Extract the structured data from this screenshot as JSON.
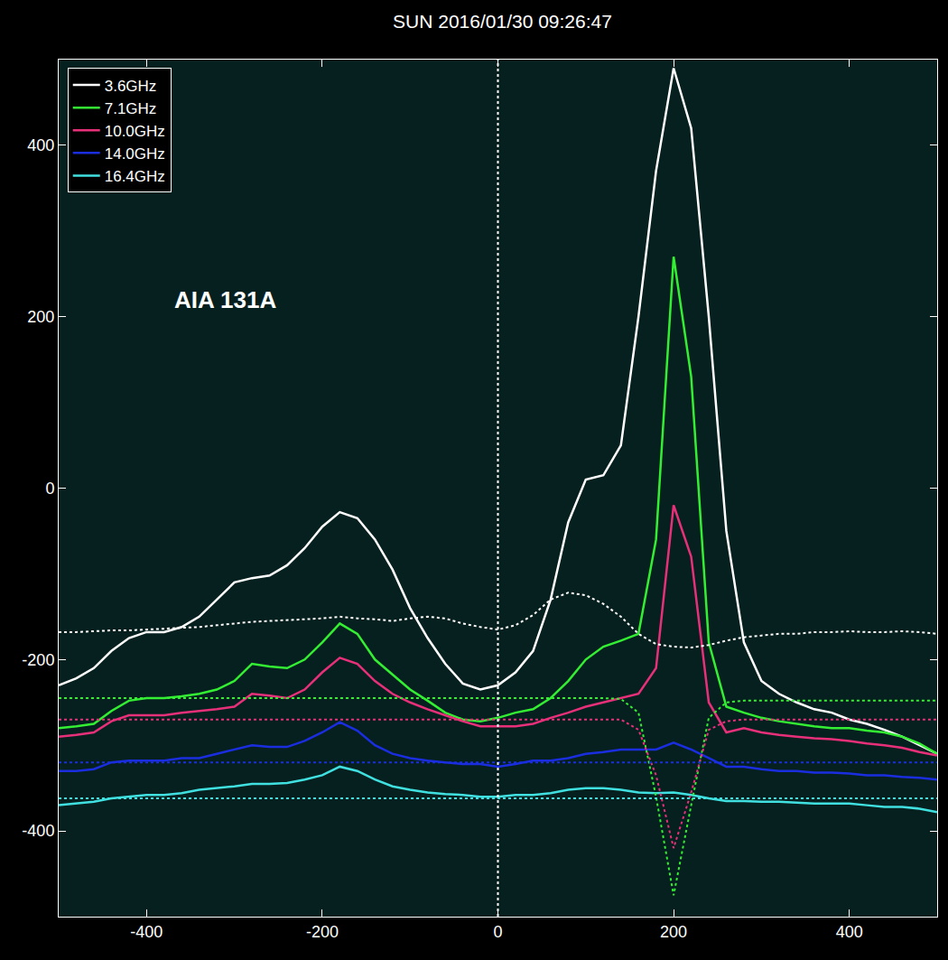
{
  "chart_data": {
    "type": "line",
    "title": "SUN 2016/01/30 09:26:47",
    "annotations": [
      {
        "text": "AIA 131A"
      }
    ],
    "xlim": [
      -500,
      500
    ],
    "ylim": [
      -500,
      500
    ],
    "xticks": [
      -400,
      -200,
      0,
      200,
      400
    ],
    "yticks": [
      -400,
      -200,
      0,
      200,
      400
    ],
    "grid": false,
    "legend": "top-left",
    "x": [
      -500,
      -480,
      -460,
      -440,
      -420,
      -400,
      -380,
      -360,
      -340,
      -320,
      -300,
      -280,
      -260,
      -240,
      -220,
      -200,
      -180,
      -160,
      -140,
      -120,
      -100,
      -80,
      -60,
      -40,
      -20,
      0,
      20,
      40,
      60,
      80,
      100,
      120,
      140,
      160,
      180,
      200,
      220,
      240,
      260,
      280,
      300,
      320,
      340,
      360,
      380,
      400,
      420,
      440,
      460,
      480,
      500
    ],
    "series": [
      {
        "name": "3.6GHz",
        "color": "#ffffff",
        "line_style": "solid",
        "values": [
          -230,
          -222,
          -210,
          -190,
          -175,
          -168,
          -168,
          -162,
          -150,
          -130,
          -110,
          -105,
          -102,
          -90,
          -70,
          -45,
          -28,
          -35,
          -60,
          -95,
          -140,
          -175,
          -205,
          -228,
          -235,
          -230,
          -215,
          -190,
          -130,
          -40,
          10,
          15,
          50,
          200,
          370,
          490,
          420,
          200,
          -50,
          -180,
          -225,
          -240,
          -250,
          -258,
          -262,
          -270,
          -275,
          -282,
          -290,
          -300,
          -310
        ]
      },
      {
        "name": "7.1GHz",
        "color": "#33ee33",
        "line_style": "solid",
        "values": [
          -280,
          -278,
          -275,
          -260,
          -248,
          -245,
          -245,
          -243,
          -240,
          -235,
          -225,
          -205,
          -208,
          -210,
          -200,
          -180,
          -158,
          -170,
          -200,
          -218,
          -235,
          -248,
          -262,
          -270,
          -272,
          -268,
          -262,
          -258,
          -245,
          -225,
          -200,
          -185,
          -178,
          -170,
          -60,
          270,
          130,
          -180,
          -255,
          -262,
          -268,
          -272,
          -275,
          -278,
          -280,
          -280,
          -283,
          -285,
          -290,
          -298,
          -310
        ]
      },
      {
        "name": "10.0GHz",
        "color": "#e8307a",
        "line_style": "solid",
        "values": [
          -290,
          -288,
          -285,
          -272,
          -265,
          -265,
          -265,
          -262,
          -260,
          -258,
          -255,
          -240,
          -242,
          -245,
          -235,
          -215,
          -198,
          -205,
          -225,
          -240,
          -250,
          -258,
          -265,
          -272,
          -278,
          -278,
          -278,
          -275,
          -268,
          -262,
          -255,
          -250,
          -245,
          -240,
          -210,
          -20,
          -80,
          -250,
          -285,
          -280,
          -285,
          -288,
          -290,
          -292,
          -293,
          -295,
          -298,
          -300,
          -303,
          -308,
          -312
        ]
      },
      {
        "name": "14.0GHz",
        "color": "#1a2ee0",
        "line_style": "solid",
        "values": [
          -330,
          -330,
          -328,
          -320,
          -318,
          -318,
          -318,
          -315,
          -315,
          -310,
          -305,
          -300,
          -302,
          -302,
          -295,
          -285,
          -273,
          -283,
          -300,
          -310,
          -315,
          -318,
          -320,
          -322,
          -322,
          -325,
          -322,
          -318,
          -318,
          -315,
          -310,
          -308,
          -305,
          -305,
          -305,
          -297,
          -305,
          -315,
          -325,
          -325,
          -328,
          -330,
          -330,
          -332,
          -332,
          -333,
          -335,
          -335,
          -337,
          -338,
          -340
        ]
      },
      {
        "name": "16.4GHz",
        "color": "#40e0e0",
        "line_style": "solid",
        "values": [
          -370,
          -368,
          -366,
          -362,
          -360,
          -358,
          -358,
          -356,
          -352,
          -350,
          -348,
          -345,
          -345,
          -344,
          -340,
          -335,
          -325,
          -330,
          -340,
          -348,
          -352,
          -355,
          -357,
          -358,
          -360,
          -360,
          -358,
          -358,
          -356,
          -352,
          -350,
          -350,
          -352,
          -355,
          -356,
          -355,
          -358,
          -362,
          -365,
          -365,
          -366,
          -366,
          -367,
          -368,
          -368,
          -368,
          -370,
          -372,
          -372,
          -374,
          -378
        ]
      },
      {
        "color": "#ffffff",
        "line_style": "dotted",
        "values": [
          -168,
          -168,
          -167,
          -166,
          -166,
          -165,
          -164,
          -163,
          -162,
          -160,
          -158,
          -156,
          -155,
          -154,
          -153,
          -152,
          -150,
          -152,
          -153,
          -155,
          -152,
          -150,
          -152,
          -158,
          -162,
          -165,
          -160,
          -148,
          -130,
          -122,
          -125,
          -135,
          -150,
          -170,
          -182,
          -185,
          -186,
          -183,
          -178,
          -174,
          -172,
          -170,
          -170,
          -168,
          -168,
          -167,
          -168,
          -168,
          -167,
          -168,
          -170
        ]
      },
      {
        "color": "#33ee33",
        "line_style": "dotted",
        "values": [
          -245,
          -245,
          -245,
          -245,
          -245,
          -245,
          -245,
          -245,
          -245,
          -245,
          -245,
          -245,
          -245,
          -245,
          -245,
          -245,
          -245,
          -245,
          -245,
          -245,
          -245,
          -245,
          -245,
          -245,
          -245,
          -245,
          -245,
          -245,
          -245,
          -245,
          -245,
          -245,
          -246,
          -262,
          -360,
          -475,
          -370,
          -268,
          -250,
          -248,
          -248,
          -248,
          -248,
          -248,
          -248,
          -248,
          -248,
          -248,
          -248,
          -248,
          -248
        ]
      },
      {
        "color": "#e8307a",
        "line_style": "dotted",
        "values": [
          -270,
          -270,
          -270,
          -270,
          -270,
          -270,
          -270,
          -270,
          -270,
          -270,
          -270,
          -270,
          -270,
          -270,
          -270,
          -270,
          -270,
          -270,
          -270,
          -270,
          -270,
          -270,
          -270,
          -270,
          -270,
          -270,
          -270,
          -270,
          -270,
          -270,
          -270,
          -270,
          -270,
          -282,
          -335,
          -420,
          -355,
          -282,
          -272,
          -270,
          -270,
          -270,
          -270,
          -270,
          -270,
          -270,
          -270,
          -270,
          -270,
          -270,
          -270
        ]
      },
      {
        "color": "#1a2ee0",
        "line_style": "dotted",
        "values": [
          -320,
          -320,
          -320,
          -320,
          -320,
          -320,
          -320,
          -320,
          -320,
          -320,
          -320,
          -320,
          -320,
          -320,
          -320,
          -320,
          -320,
          -320,
          -320,
          -320,
          -320,
          -320,
          -320,
          -320,
          -320,
          -320,
          -320,
          -320,
          -320,
          -320,
          -320,
          -320,
          -320,
          -320,
          -320,
          -320,
          -320,
          -320,
          -320,
          -320,
          -320,
          -320,
          -320,
          -320,
          -320,
          -320,
          -320,
          -320,
          -320,
          -320,
          -320
        ]
      },
      {
        "color": "#40e0e0",
        "line_style": "dotted",
        "values": [
          -362,
          -362,
          -362,
          -362,
          -362,
          -362,
          -362,
          -362,
          -362,
          -362,
          -362,
          -362,
          -362,
          -362,
          -362,
          -362,
          -362,
          -362,
          -362,
          -362,
          -362,
          -362,
          -362,
          -362,
          -362,
          -362,
          -362,
          -362,
          -362,
          -362,
          -362,
          -362,
          -362,
          -362,
          -362,
          -362,
          -362,
          -362,
          -362,
          -362,
          -362,
          -362,
          -362,
          -362,
          -362,
          -362,
          -362,
          -362,
          -362,
          -362,
          -362
        ]
      },
      {
        "color": "#ffffff",
        "line_style": "dotted",
        "x": [
          0,
          0
        ],
        "values": [
          -500,
          500
        ]
      }
    ]
  }
}
